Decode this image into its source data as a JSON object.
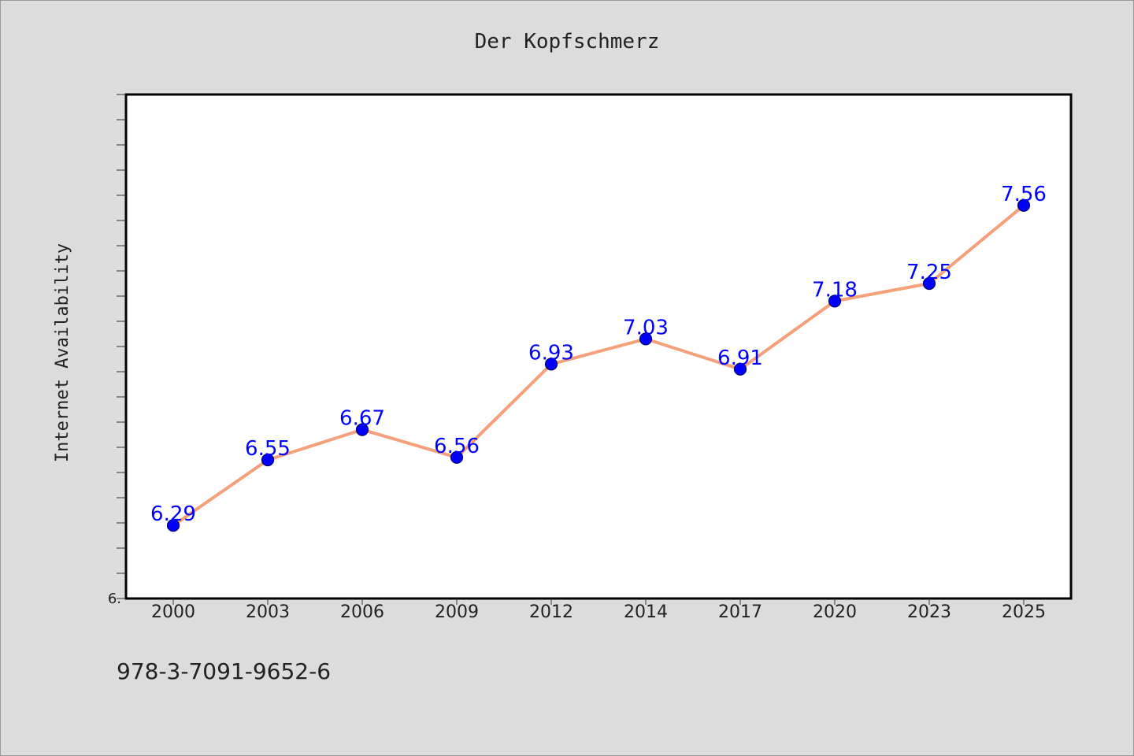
{
  "chart_data": {
    "type": "line",
    "title": "Der Kopfschmerz",
    "xlabel": "",
    "ylabel": "Internet Availability",
    "categories": [
      "2000",
      "2003",
      "2006",
      "2009",
      "2012",
      "2014",
      "2017",
      "2020",
      "2023",
      "2025"
    ],
    "series": [
      {
        "values": [
          6.29,
          6.55,
          6.67,
          6.56,
          6.93,
          7.03,
          6.91,
          7.18,
          7.25,
          7.56
        ],
        "data_labels": [
          "6.29",
          "6.55",
          "6.67",
          "6.56",
          "6.93",
          "7.03",
          "6.91",
          "7.18",
          "7.25",
          "7.56"
        ]
      }
    ],
    "y_tick_label": "6.",
    "ylim": [
      6.0,
      8.0
    ],
    "grid": false,
    "legend": "none",
    "colors": {
      "line": "#f4a07a",
      "marker": "#0000ff",
      "marker_edge": "#000066",
      "data_label": "#0000ff",
      "plot_bg": "#ffffff",
      "page_bg": "#dcdcdc"
    }
  },
  "footer": {
    "isbn": "978-3-7091-9652-6"
  }
}
